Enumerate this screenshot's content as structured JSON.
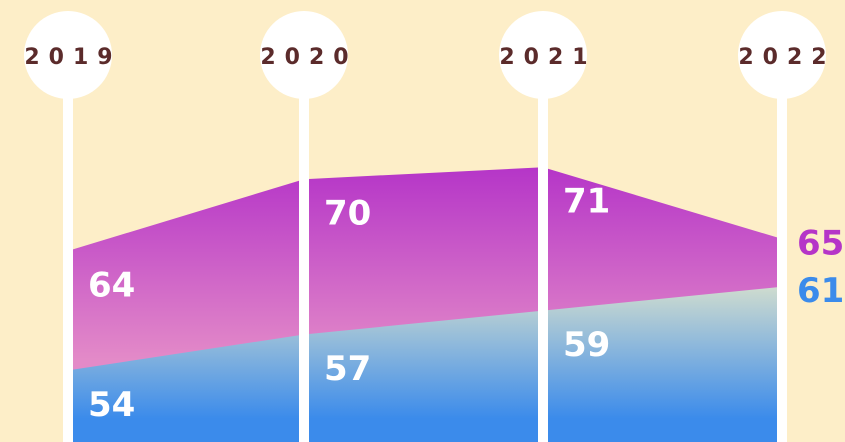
{
  "chart_data": {
    "type": "area",
    "categories": [
      "2019",
      "2020",
      "2021",
      "2022"
    ],
    "series": [
      {
        "name": null,
        "color": "#b535c8",
        "values": [
          64,
          70,
          71,
          65
        ]
      },
      {
        "name": null,
        "color": "#3b8beb",
        "values": [
          54,
          57,
          59,
          61
        ]
      }
    ],
    "ylim": [
      48,
      85
    ]
  }
}
